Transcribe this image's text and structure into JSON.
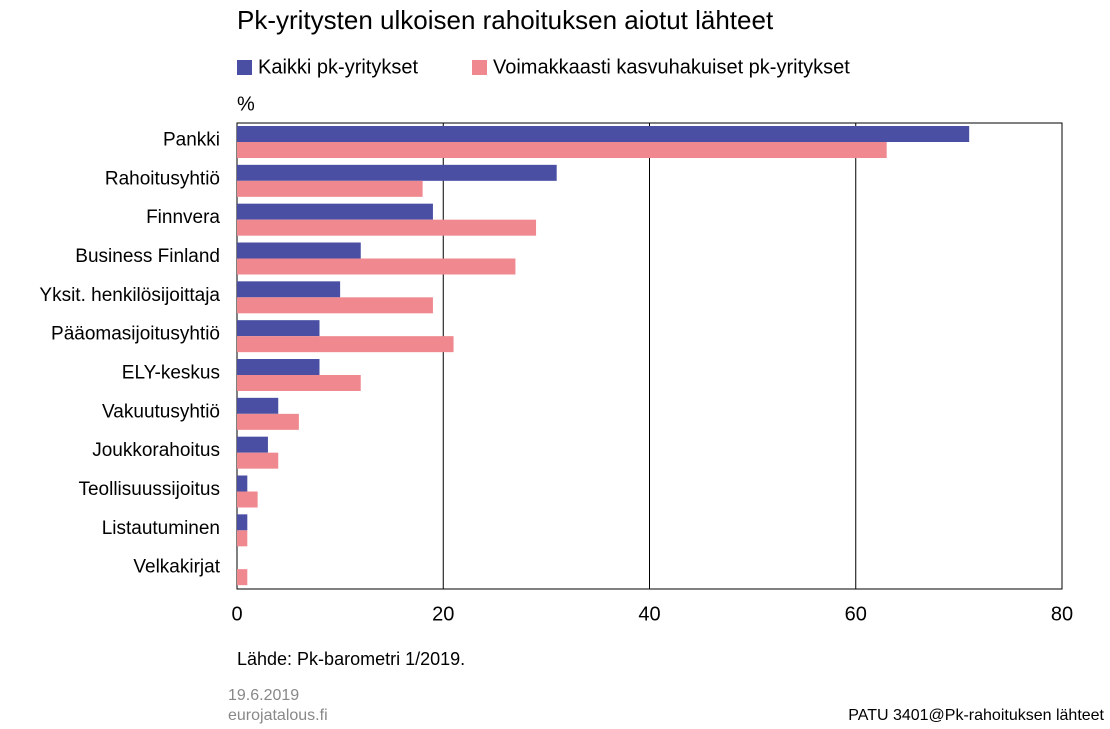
{
  "chart_data": {
    "type": "bar",
    "orientation": "horizontal",
    "title": "Pk-yritysten ulkoisen rahoituksen aiotut lähteet",
    "value_axis_label": "%",
    "categories": [
      "Pankki",
      "Rahoitusyhtiö",
      "Finnvera",
      "Business Finland",
      "Yksit. henkilösijoittaja",
      "Pääomasijoitusyhtiö",
      "ELY-keskus",
      "Vakuutusyhtiö",
      "Joukkorahoitus",
      "Teollisuussijoitus",
      "Listautuminen",
      "Velkakirjat"
    ],
    "series": [
      {
        "name": "Kaikki pk-yritykset",
        "color": "#4a4fa3",
        "values": [
          71,
          31,
          19,
          12,
          10,
          8,
          8,
          4,
          3,
          1,
          1,
          0
        ]
      },
      {
        "name": "Voimakkaasti kasvuhakuiset pk-yritykset",
        "color": "#f0898f",
        "values": [
          63,
          18,
          29,
          27,
          19,
          21,
          12,
          6,
          4,
          2,
          1,
          1
        ]
      }
    ],
    "xlim": [
      0,
      80
    ],
    "xticks": [
      0,
      20,
      40,
      60,
      80
    ],
    "grid": true,
    "source": "Lähde: Pk-barometri 1/2019."
  },
  "footer": {
    "date": "19.6.2019",
    "site": "eurojatalous.fi",
    "code": "PATU 3401@Pk-rahoituksen lähteet"
  }
}
